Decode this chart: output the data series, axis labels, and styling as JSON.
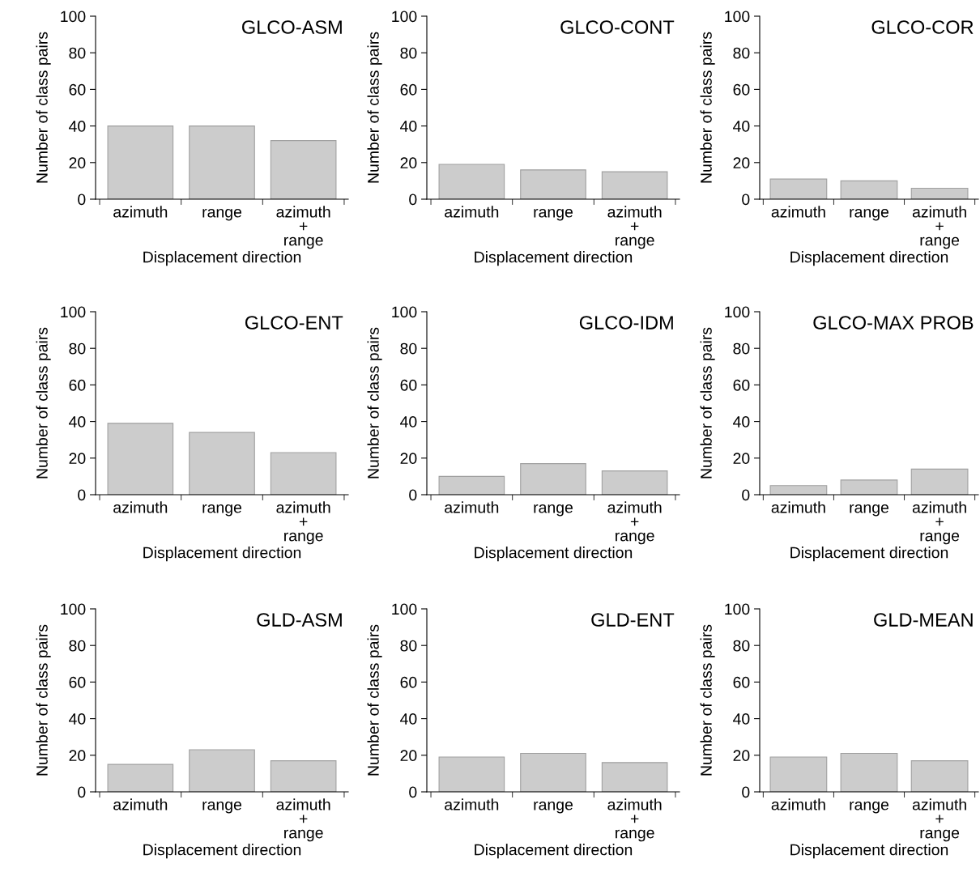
{
  "chart_data": [
    {
      "type": "bar",
      "title": "GLCO-ASM",
      "xlabel": "Displacement direction",
      "ylabel": "Number of class pairs",
      "categories": [
        "azimuth",
        "range",
        "azimuth\n+\nrange"
      ],
      "values": [
        40,
        40,
        32
      ],
      "color": "#cccccc",
      "ylim": [
        0,
        100
      ],
      "yticks": [
        0,
        20,
        40,
        60,
        80,
        100
      ],
      "grid": false
    },
    {
      "type": "bar",
      "title": "GLCO-CONT",
      "xlabel": "Displacement direction",
      "ylabel": "Number of class pairs",
      "categories": [
        "azimuth",
        "range",
        "azimuth\n+\nrange"
      ],
      "values": [
        19,
        16,
        15
      ],
      "color": "#cccccc",
      "ylim": [
        0,
        100
      ],
      "yticks": [
        0,
        20,
        40,
        60,
        80,
        100
      ],
      "grid": false
    },
    {
      "type": "bar",
      "title": "GLCO-COR",
      "xlabel": "Displacement direction",
      "ylabel": "Number of class pairs",
      "categories": [
        "azimuth",
        "range",
        "azimuth\n+\nrange"
      ],
      "values": [
        11,
        10,
        6
      ],
      "color": "#cccccc",
      "ylim": [
        0,
        100
      ],
      "yticks": [
        0,
        20,
        40,
        60,
        80,
        100
      ],
      "grid": false
    },
    {
      "type": "bar",
      "title": "GLCO-ENT",
      "xlabel": "Displacement direction",
      "ylabel": "Number of class pairs",
      "categories": [
        "azimuth",
        "range",
        "azimuth\n+\nrange"
      ],
      "values": [
        39,
        34,
        23
      ],
      "color": "#cccccc",
      "ylim": [
        0,
        100
      ],
      "yticks": [
        0,
        20,
        40,
        60,
        80,
        100
      ],
      "grid": false
    },
    {
      "type": "bar",
      "title": "GLCO-IDM",
      "xlabel": "Displacement direction",
      "ylabel": "Number of class pairs",
      "categories": [
        "azimuth",
        "range",
        "azimuth\n+\nrange"
      ],
      "values": [
        10,
        17,
        13
      ],
      "color": "#cccccc",
      "ylim": [
        0,
        100
      ],
      "yticks": [
        0,
        20,
        40,
        60,
        80,
        100
      ],
      "grid": false
    },
    {
      "type": "bar",
      "title": "GLCO-MAX PROB",
      "xlabel": "Displacement direction",
      "ylabel": "Number of class pairs",
      "categories": [
        "azimuth",
        "range",
        "azimuth\n+\nrange"
      ],
      "values": [
        5,
        8,
        14
      ],
      "color": "#cccccc",
      "ylim": [
        0,
        100
      ],
      "yticks": [
        0,
        20,
        40,
        60,
        80,
        100
      ],
      "grid": false
    },
    {
      "type": "bar",
      "title": "GLD-ASM",
      "xlabel": "Displacement direction",
      "ylabel": "Number of class pairs",
      "categories": [
        "azimuth",
        "range",
        "azimuth\n+\nrange"
      ],
      "values": [
        15,
        23,
        17
      ],
      "color": "#cccccc",
      "ylim": [
        0,
        100
      ],
      "yticks": [
        0,
        20,
        40,
        60,
        80,
        100
      ],
      "grid": false
    },
    {
      "type": "bar",
      "title": "GLD-ENT",
      "xlabel": "Displacement direction",
      "ylabel": "Number of class pairs",
      "categories": [
        "azimuth",
        "range",
        "azimuth\n+\nrange"
      ],
      "values": [
        19,
        21,
        16
      ],
      "color": "#cccccc",
      "ylim": [
        0,
        100
      ],
      "yticks": [
        0,
        20,
        40,
        60,
        80,
        100
      ],
      "grid": false
    },
    {
      "type": "bar",
      "title": "GLD-MEAN",
      "xlabel": "Displacement direction",
      "ylabel": "Number of class pairs",
      "categories": [
        "azimuth",
        "range",
        "azimuth\n+\nrange"
      ],
      "values": [
        19,
        21,
        17
      ],
      "color": "#cccccc",
      "ylim": [
        0,
        100
      ],
      "yticks": [
        0,
        20,
        40,
        60,
        80,
        100
      ],
      "grid": false
    }
  ]
}
